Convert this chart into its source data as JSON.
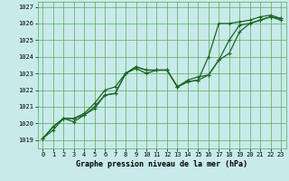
{
  "xlabel": "Graphe pression niveau de la mer (hPa)",
  "ylim": [
    1018.5,
    1027.3
  ],
  "yticks": [
    1019,
    1020,
    1021,
    1022,
    1023,
    1024,
    1025,
    1026,
    1027
  ],
  "background_color": "#c8eaea",
  "grid_color": "#5aaa5a",
  "line_color": "#1a6622",
  "line1": [
    1019.1,
    1019.6,
    1020.3,
    1020.3,
    1020.5,
    1020.9,
    1021.7,
    1021.8,
    1023.0,
    1023.3,
    1023.0,
    1023.2,
    1023.2,
    1022.2,
    1022.6,
    1022.8,
    1022.9,
    1023.8,
    1025.0,
    1025.9,
    1026.0,
    1026.2,
    1026.4,
    1026.3
  ],
  "line2": [
    1019.1,
    1019.8,
    1020.3,
    1020.1,
    1020.5,
    1021.0,
    1021.7,
    1021.8,
    1023.0,
    1023.4,
    1023.2,
    1023.2,
    1023.2,
    1022.2,
    1022.5,
    1022.6,
    1022.9,
    1023.8,
    1024.2,
    1025.5,
    1026.0,
    1026.2,
    1026.4,
    1026.2
  ],
  "line3": [
    1019.1,
    1019.8,
    1020.3,
    1020.3,
    1020.6,
    1021.2,
    1022.0,
    1022.2,
    1023.0,
    1023.4,
    1023.2,
    1023.2,
    1023.2,
    1022.2,
    1022.5,
    1022.6,
    1024.0,
    1026.0,
    1026.0,
    1026.1,
    1026.2,
    1026.4,
    1026.5,
    1026.3
  ],
  "tick_fontsize": 5,
  "label_fontsize": 6
}
